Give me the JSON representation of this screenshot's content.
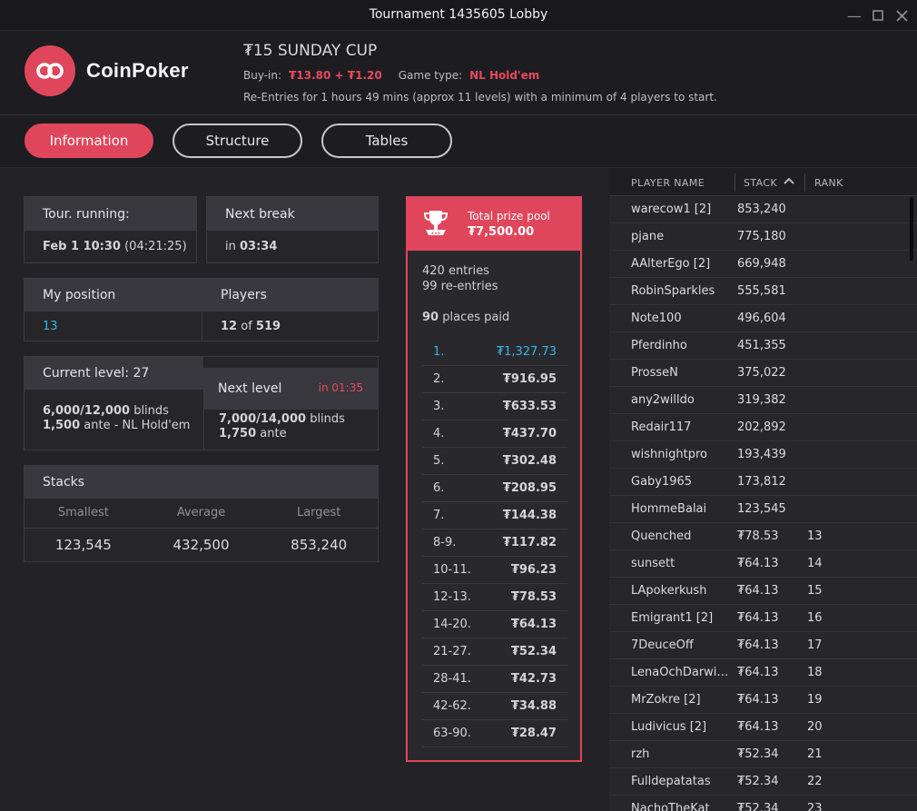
{
  "window": {
    "title": "Tournament 1435605 Lobby"
  },
  "brand": {
    "name": "CoinPoker"
  },
  "tournament": {
    "name": "₮15 SUNDAY CUP",
    "buyin_label": "Buy-in:",
    "buyin_value": "₮13.80 + ₮1.20",
    "gametype_label": "Game type:",
    "gametype_value": "NL Hold'em",
    "description": "Re-Entries for 1 hours 49 mins (approx 11 levels) with a minimum of 4 players to start."
  },
  "tabs": [
    {
      "label": "Information",
      "active": true
    },
    {
      "label": "Structure",
      "active": false
    },
    {
      "label": "Tables",
      "active": false
    }
  ],
  "info": {
    "tour_running_label": "Tour. running:",
    "tour_running_date": "Feb 1 10:30",
    "tour_running_elapsed": "(04:21:25)",
    "next_break_label": "Next break",
    "next_break_prefix": "in",
    "next_break_value": "03:34",
    "my_position_label": "My position",
    "my_position_value": "13",
    "players_label": "Players",
    "players_count": "12",
    "players_of": "of",
    "players_total": "519",
    "current_level_label": "Current level: 27",
    "current_blinds_value": "6,000/12,000",
    "current_blinds_word": "blinds",
    "current_ante_value": "1,500",
    "current_ante_word": "ante - NL Hold'em",
    "next_level_label": "Next level",
    "next_level_timer": "in 01:35",
    "next_blinds_value": "7,000/14,000",
    "next_blinds_word": "blinds",
    "next_ante_value": "1,750",
    "next_ante_word": "ante",
    "stacks_label": "Stacks",
    "smallest_label": "Smallest",
    "average_label": "Average",
    "largest_label": "Largest",
    "smallest_value": "123,545",
    "average_value": "432,500",
    "largest_value": "853,240"
  },
  "prize_pool": {
    "label": "Total prize pool",
    "total": "₮7,500.00",
    "entries": "420 entries",
    "reentries": "99 re-entries",
    "places_count": "90",
    "places_word": "places paid",
    "payouts": [
      {
        "place": "1.",
        "amount": "₮1,327.73"
      },
      {
        "place": "2.",
        "amount": "₮916.95"
      },
      {
        "place": "3.",
        "amount": "₮633.53"
      },
      {
        "place": "4.",
        "amount": "₮437.70"
      },
      {
        "place": "5.",
        "amount": "₮302.48"
      },
      {
        "place": "6.",
        "amount": "₮208.95"
      },
      {
        "place": "7.",
        "amount": "₮144.38"
      },
      {
        "place": "8-9.",
        "amount": "₮117.82"
      },
      {
        "place": "10-11.",
        "amount": "₮96.23"
      },
      {
        "place": "12-13.",
        "amount": "₮78.53"
      },
      {
        "place": "14-20.",
        "amount": "₮64.13"
      },
      {
        "place": "21-27.",
        "amount": "₮52.34"
      },
      {
        "place": "28-41.",
        "amount": "₮42.73"
      },
      {
        "place": "42-62.",
        "amount": "₮34.88"
      },
      {
        "place": "63-90.",
        "amount": "₮28.47"
      }
    ]
  },
  "player_list": {
    "col_name": "PLAYER NAME",
    "col_stack": "STACK",
    "col_rank": "RANK",
    "rows": [
      {
        "name": "warecow1 [2]",
        "stack": "853,240",
        "rank": ""
      },
      {
        "name": "pjane",
        "stack": "775,180",
        "rank": ""
      },
      {
        "name": "AAlterEgo [2]",
        "stack": "669,948",
        "rank": ""
      },
      {
        "name": "RobinSparkles",
        "stack": "555,581",
        "rank": ""
      },
      {
        "name": "Note100",
        "stack": "496,604",
        "rank": ""
      },
      {
        "name": "Pferdinho",
        "stack": "451,355",
        "rank": ""
      },
      {
        "name": "ProsseN",
        "stack": "375,022",
        "rank": ""
      },
      {
        "name": "any2willdo",
        "stack": "319,382",
        "rank": ""
      },
      {
        "name": "Redair117",
        "stack": "202,892",
        "rank": ""
      },
      {
        "name": "wishnightpro",
        "stack": "193,439",
        "rank": ""
      },
      {
        "name": "Gaby1965",
        "stack": "173,812",
        "rank": ""
      },
      {
        "name": "HommeBalai",
        "stack": "123,545",
        "rank": ""
      },
      {
        "name": "Quenched",
        "stack": "₮78.53",
        "rank": "13"
      },
      {
        "name": "sunsett",
        "stack": "₮64.13",
        "rank": "14"
      },
      {
        "name": "LApokerkush",
        "stack": "₮64.13",
        "rank": "15"
      },
      {
        "name": "Emigrant1 [2]",
        "stack": "₮64.13",
        "rank": "16"
      },
      {
        "name": "7DeuceOff",
        "stack": "₮64.13",
        "rank": "17"
      },
      {
        "name": "LenaOchDarwin...",
        "stack": "₮64.13",
        "rank": "18"
      },
      {
        "name": "MrZokre [2]",
        "stack": "₮64.13",
        "rank": "19"
      },
      {
        "name": "Ludivicus [2]",
        "stack": "₮64.13",
        "rank": "20"
      },
      {
        "name": "rzh",
        "stack": "₮52.34",
        "rank": "21"
      },
      {
        "name": "Fulldepatatas",
        "stack": "₮52.34",
        "rank": "22"
      },
      {
        "name": "NachoTheKat",
        "stack": "₮52.34",
        "rank": "23"
      }
    ]
  },
  "colors": {
    "accent": "#e0465b",
    "link": "#33b5e8",
    "background": "#232327"
  },
  "icons": {
    "logo": "coinpoker-logo-icon",
    "trophy": "trophy-icon",
    "sort": "sort-asc-icon"
  }
}
